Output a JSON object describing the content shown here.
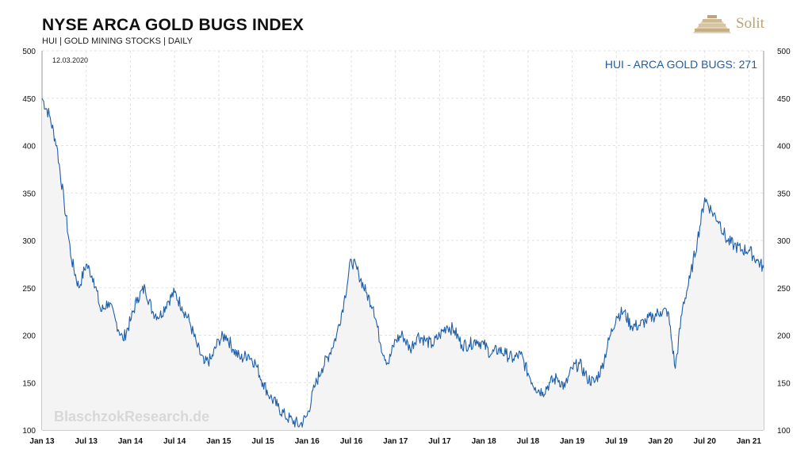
{
  "header": {
    "title": "NYSE ARCA GOLD BUGS INDEX",
    "subtitle": "HUI | GOLD MINING STOCKS | DAILY",
    "brand": "Solit"
  },
  "colors": {
    "line": "#1f5ea8",
    "fill": "#f4f4f4",
    "grid": "#e2e2e2",
    "brand": "#b8a27a"
  },
  "chart_data": {
    "type": "area",
    "title": "NYSE ARCA GOLD BUGS INDEX",
    "subtitle": "HUI | GOLD MINING STOCKS | DAILY",
    "annotation": "12.03.2020",
    "watermark": "BlaschzokResearch.de",
    "legend_label": "HUI - ARCA GOLD BUGS: 271",
    "legend_position": "top-right",
    "grid": true,
    "ylim": [
      100,
      500
    ],
    "yticks": [
      100,
      150,
      200,
      250,
      300,
      350,
      400,
      450,
      500
    ],
    "xticks": [
      "Jan 13",
      "Jul 13",
      "Jan 14",
      "Jul 14",
      "Jan 15",
      "Jul 15",
      "Jan 16",
      "Jul 16",
      "Jan 17",
      "Jul 17",
      "Jan 18",
      "Jul 18",
      "Jan 19",
      "Jul 19",
      "Jan 20",
      "Jul 20",
      "Jan 21"
    ],
    "xlim": [
      "2013-01",
      "2021-03"
    ],
    "series": [
      {
        "name": "HUI - ARCA GOLD BUGS",
        "x": [
          "2013-01",
          "2013-02",
          "2013-03",
          "2013-04",
          "2013-05",
          "2013-06",
          "2013-07",
          "2013-08",
          "2013-09",
          "2013-10",
          "2013-11",
          "2013-12",
          "2014-01",
          "2014-02",
          "2014-03",
          "2014-04",
          "2014-05",
          "2014-06",
          "2014-07",
          "2014-08",
          "2014-09",
          "2014-10",
          "2014-11",
          "2014-12",
          "2015-01",
          "2015-02",
          "2015-03",
          "2015-04",
          "2015-05",
          "2015-06",
          "2015-07",
          "2015-08",
          "2015-09",
          "2015-10",
          "2015-11",
          "2015-12",
          "2016-01",
          "2016-02",
          "2016-03",
          "2016-04",
          "2016-05",
          "2016-06",
          "2016-07",
          "2016-08",
          "2016-09",
          "2016-10",
          "2016-11",
          "2016-12",
          "2017-01",
          "2017-02",
          "2017-03",
          "2017-04",
          "2017-05",
          "2017-06",
          "2017-07",
          "2017-08",
          "2017-09",
          "2017-10",
          "2017-11",
          "2017-12",
          "2018-01",
          "2018-02",
          "2018-03",
          "2018-04",
          "2018-05",
          "2018-06",
          "2018-07",
          "2018-08",
          "2018-09",
          "2018-10",
          "2018-11",
          "2018-12",
          "2019-01",
          "2019-02",
          "2019-03",
          "2019-04",
          "2019-05",
          "2019-06",
          "2019-07",
          "2019-08",
          "2019-09",
          "2019-10",
          "2019-11",
          "2019-12",
          "2020-01",
          "2020-02",
          "2020-03",
          "2020-04",
          "2020-05",
          "2020-06",
          "2020-07",
          "2020-08",
          "2020-09",
          "2020-10",
          "2020-11",
          "2020-12",
          "2021-01",
          "2021-02",
          "2021-03"
        ],
        "values": [
          450,
          432,
          400,
          340,
          280,
          250,
          275,
          260,
          225,
          235,
          215,
          195,
          215,
          240,
          250,
          225,
          220,
          235,
          245,
          230,
          215,
          190,
          170,
          175,
          195,
          200,
          185,
          175,
          180,
          170,
          150,
          135,
          125,
          115,
          110,
          105,
          115,
          145,
          165,
          180,
          200,
          235,
          280,
          265,
          245,
          230,
          190,
          170,
          195,
          200,
          185,
          200,
          195,
          190,
          200,
          210,
          205,
          190,
          190,
          195,
          190,
          180,
          185,
          180,
          175,
          180,
          160,
          145,
          140,
          150,
          155,
          145,
          165,
          170,
          155,
          150,
          165,
          195,
          220,
          225,
          210,
          210,
          215,
          220,
          225,
          225,
          165,
          230,
          260,
          300,
          345,
          330,
          320,
          300,
          295,
          290,
          290,
          280,
          271
        ]
      }
    ]
  }
}
